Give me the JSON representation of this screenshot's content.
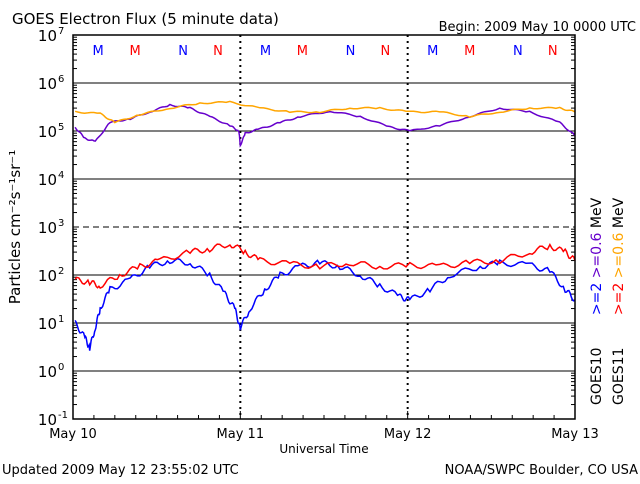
{
  "chart_data": {
    "type": "line",
    "title": "GOES Electron Flux (5 minute data)",
    "begin_label": "Begin: 2009 May 10 0000 UTC",
    "xlabel": "Universal Time",
    "ylabel": "Particles cm⁻²s⁻¹sr⁻¹",
    "yscale": "log",
    "ylim": [
      0.1,
      10000000
    ],
    "xlim_hours": [
      0,
      72
    ],
    "y_ticks": [
      {
        "exp": 7,
        "label": "10",
        "sup": "7"
      },
      {
        "exp": 6,
        "label": "10",
        "sup": "6"
      },
      {
        "exp": 5,
        "label": "10",
        "sup": "5"
      },
      {
        "exp": 4,
        "label": "10",
        "sup": "4"
      },
      {
        "exp": 3,
        "label": "10",
        "sup": "3"
      },
      {
        "exp": 2,
        "label": "10",
        "sup": "2"
      },
      {
        "exp": 1,
        "label": "10",
        "sup": "1"
      },
      {
        "exp": 0,
        "label": "10",
        "sup": "0"
      },
      {
        "exp": -1,
        "label": "10",
        "sup": "-1"
      }
    ],
    "x_ticks": [
      {
        "hour": 0,
        "label": "May 10"
      },
      {
        "hour": 24,
        "label": "May 11"
      },
      {
        "hour": 48,
        "label": "May 12"
      },
      {
        "hour": 72,
        "label": "May 13"
      }
    ],
    "markers": [
      {
        "hour": 3.6,
        "label": "M",
        "color": "#0000ff"
      },
      {
        "hour": 8.9,
        "label": "M",
        "color": "#ff0000"
      },
      {
        "hour": 15.8,
        "label": "N",
        "color": "#0000ff"
      },
      {
        "hour": 20.8,
        "label": "N",
        "color": "#ff0000"
      },
      {
        "hour": 27.6,
        "label": "M",
        "color": "#0000ff"
      },
      {
        "hour": 32.9,
        "label": "M",
        "color": "#ff0000"
      },
      {
        "hour": 39.8,
        "label": "N",
        "color": "#0000ff"
      },
      {
        "hour": 44.8,
        "label": "N",
        "color": "#ff0000"
      },
      {
        "hour": 51.6,
        "label": "M",
        "color": "#0000ff"
      },
      {
        "hour": 56.9,
        "label": "M",
        "color": "#ff0000"
      },
      {
        "hour": 63.8,
        "label": "N",
        "color": "#0000ff"
      },
      {
        "hour": 68.8,
        "label": "N",
        "color": "#ff0000"
      }
    ],
    "series": [
      {
        "name": "GOES10 >=0.6 MeV",
        "color": "#6600cc",
        "x": [
          0.3,
          1.7,
          3.2,
          5.3,
          8.2,
          11,
          13.9,
          16.8,
          19.6,
          22.5,
          23.8,
          24,
          24.7,
          26.8,
          29.7,
          32.6,
          36.9,
          41.2,
          45.5,
          48.3,
          52.6,
          56.9,
          61.2,
          65.5,
          69.8,
          72
        ],
        "y": [
          120000,
          70000,
          60000,
          150000,
          180000,
          250000,
          350000,
          300000,
          200000,
          130000,
          100000,
          50000,
          90000,
          110000,
          150000,
          200000,
          260000,
          200000,
          120000,
          100000,
          130000,
          200000,
          300000,
          250000,
          150000,
          80000
        ]
      },
      {
        "name": "GOES11 >=0.6 MeV",
        "color": "#ffa500",
        "x": [
          0.3,
          3.9,
          6,
          9.6,
          13.9,
          18.2,
          22.5,
          26.8,
          31.1,
          35.4,
          39.7,
          44,
          48.3,
          52.6,
          56.9,
          61.2,
          65.5,
          69.8,
          72
        ],
        "y": [
          250000,
          230000,
          150000,
          220000,
          300000,
          380000,
          400000,
          300000,
          250000,
          250000,
          300000,
          300000,
          250000,
          250000,
          200000,
          250000,
          300000,
          300000,
          250000
        ]
      },
      {
        "name": "GOES10 >=2 MeV",
        "color": "#0000ff",
        "x": [
          0.3,
          1.7,
          2.4,
          3.2,
          3.9,
          5.3,
          8.2,
          11,
          13.9,
          16.8,
          19.6,
          21.8,
          23.2,
          24,
          25.4,
          27.5,
          29.7,
          32.6,
          35.4,
          38.3,
          41.2,
          44,
          46.9,
          48.3,
          51.2,
          54.1,
          58.4,
          61.2,
          65.5,
          68.4,
          70.6,
          72
        ],
        "y": [
          10,
          5,
          3,
          8,
          20,
          50,
          80,
          150,
          200,
          180,
          100,
          40,
          20,
          8,
          20,
          50,
          100,
          150,
          180,
          150,
          100,
          60,
          35,
          30,
          50,
          100,
          150,
          180,
          160,
          120,
          50,
          30
        ]
      },
      {
        "name": "GOES11 >=2 MeV",
        "color": "#ff0000",
        "x": [
          0.3,
          2.4,
          3.9,
          6.7,
          9.6,
          12.5,
          16.8,
          19.6,
          22.5,
          24.7,
          26.8,
          31.1,
          35.4,
          39.7,
          44,
          48.3,
          52.6,
          56.9,
          61.2,
          65.5,
          68.4,
          70.6,
          72
        ],
        "y": [
          80,
          70,
          60,
          100,
          150,
          200,
          300,
          350,
          450,
          300,
          200,
          170,
          150,
          180,
          150,
          160,
          150,
          180,
          200,
          300,
          400,
          300,
          200
        ]
      }
    ],
    "legend": [
      {
        "sat": "GOES10",
        "labels": [
          {
            "text": ">=2",
            "color": "#0000ff"
          },
          {
            "text": ">=0.6",
            "color": "#6600cc"
          },
          {
            "text": "MeV",
            "color": "#000000"
          }
        ]
      },
      {
        "sat": "GOES11",
        "labels": [
          {
            "text": ">=2",
            "color": "#ff0000"
          },
          {
            "text": ">=0.6",
            "color": "#ffa500"
          },
          {
            "text": "MeV",
            "color": "#000000"
          }
        ]
      }
    ]
  },
  "footer": {
    "updated": "Updated 2009 May 12 23:55:02 UTC",
    "source": "NOAA/SWPC Boulder, CO USA"
  }
}
